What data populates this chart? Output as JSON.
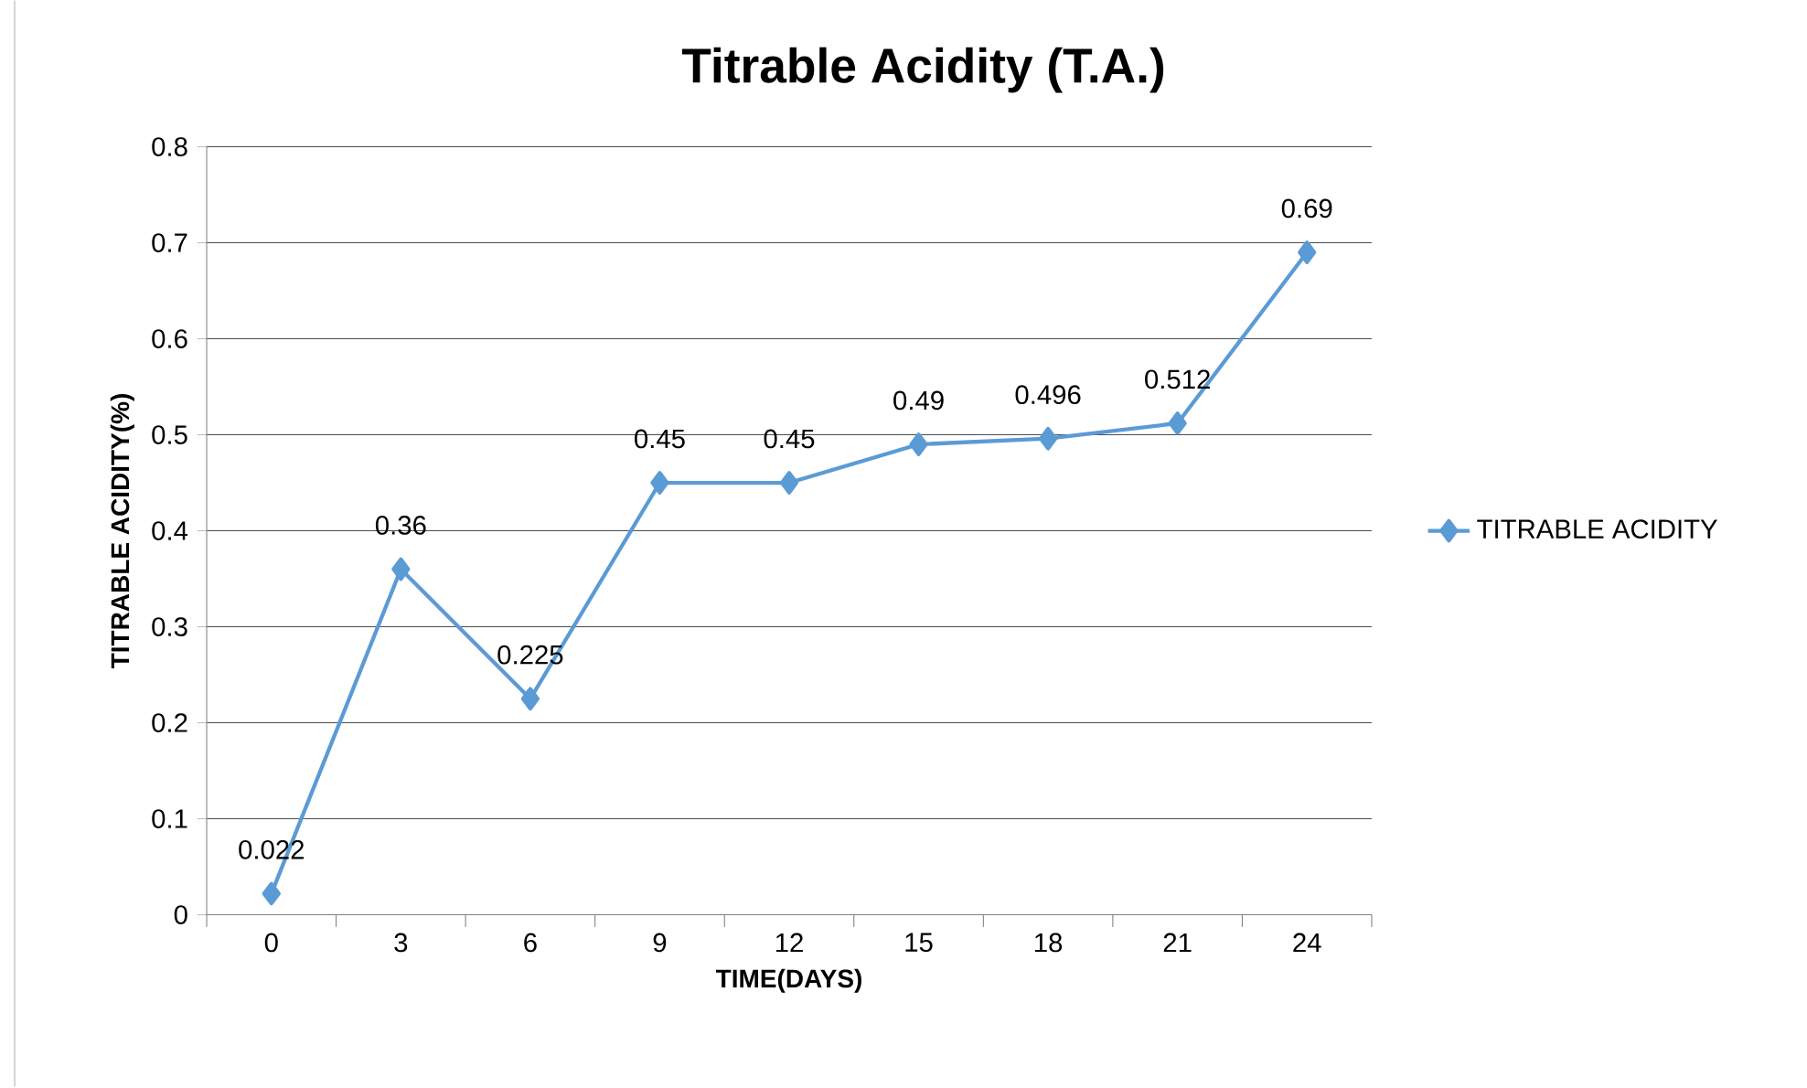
{
  "chart_data": {
    "type": "line",
    "title": "Titrable  Acidity (T.A.)",
    "xlabel": "TIME(DAYS)",
    "ylabel": "TITRABLE  ACIDITY(%)",
    "categories": [
      "0",
      "3",
      "6",
      "9",
      "12",
      "15",
      "18",
      "21",
      "24"
    ],
    "series": [
      {
        "name": "TITRABLE  ACIDITY",
        "color": "#5b9bd5",
        "values": [
          0.022,
          0.36,
          0.225,
          0.45,
          0.45,
          0.49,
          0.496,
          0.512,
          0.69
        ]
      }
    ],
    "ylim": [
      0,
      0.8
    ],
    "yticks": [
      0,
      0.1,
      0.2,
      0.3,
      0.4,
      0.5,
      0.6,
      0.7,
      0.8
    ],
    "grid": "y",
    "legend": "right",
    "marker": "diamond",
    "line_style": "solid",
    "data_labels": true
  }
}
